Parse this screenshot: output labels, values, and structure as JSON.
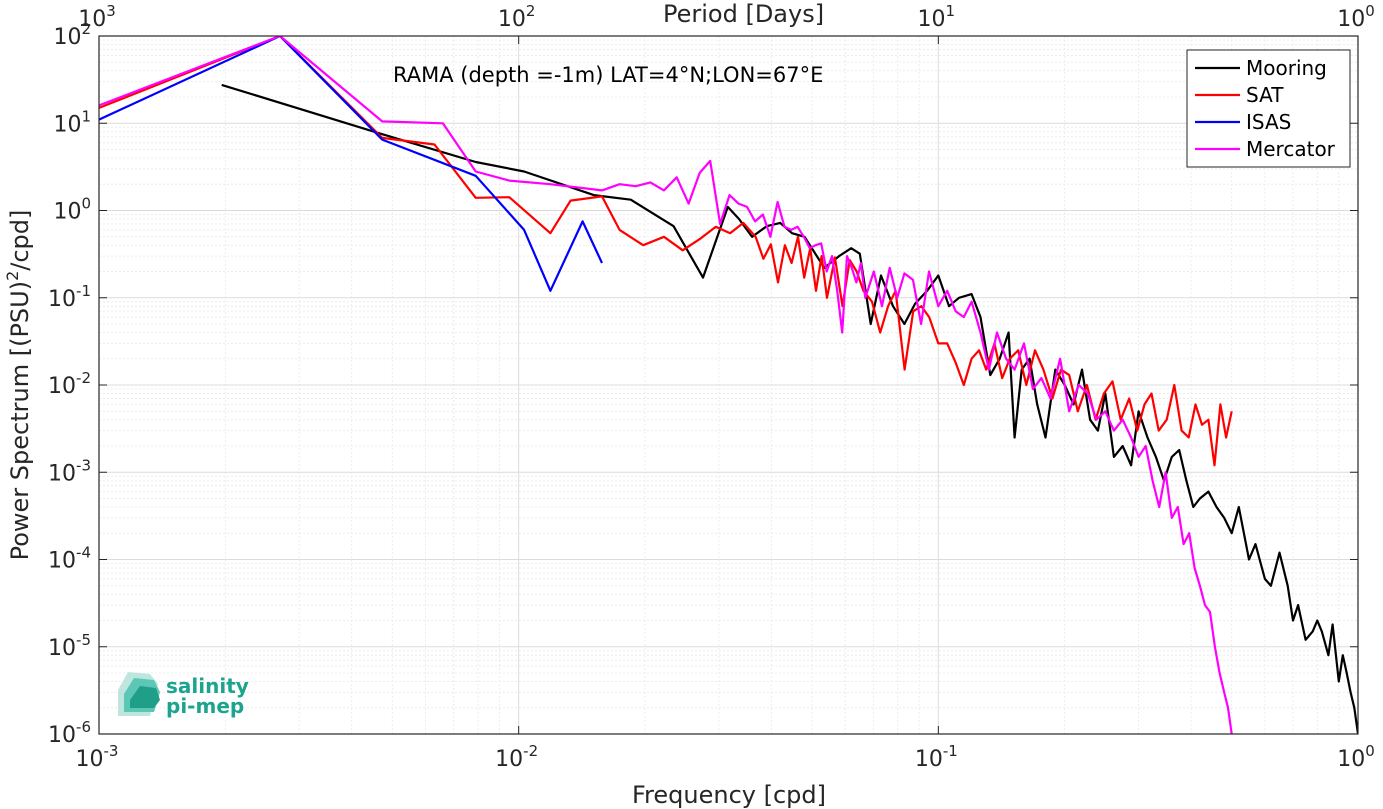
{
  "chart_data": {
    "type": "line",
    "title": "RAMA (depth =-1m) LAT=4°N;LON=67°E",
    "xlabel": "Frequency [cpd]",
    "ylabel": "Power Spectrum [(PSU)^2/cpd]",
    "top_xlabel": "Period [Days]",
    "xscale": "log",
    "yscale": "log",
    "xlim": [
      0.001,
      1
    ],
    "ylim": [
      1e-06,
      100
    ],
    "grid": true,
    "legend_position": "top-right",
    "x_ticks": [
      {
        "value": 0.001,
        "base": "10",
        "exp": "-3"
      },
      {
        "value": 0.01,
        "base": "10",
        "exp": "-2"
      },
      {
        "value": 0.1,
        "base": "10",
        "exp": "-1"
      },
      {
        "value": 1,
        "base": "10",
        "exp": "0"
      }
    ],
    "y_ticks": [
      {
        "value": 1e-06,
        "base": "10",
        "exp": "-6"
      },
      {
        "value": 1e-05,
        "base": "10",
        "exp": "-5"
      },
      {
        "value": 0.0001,
        "base": "10",
        "exp": "-4"
      },
      {
        "value": 0.001,
        "base": "10",
        "exp": "-3"
      },
      {
        "value": 0.01,
        "base": "10",
        "exp": "-2"
      },
      {
        "value": 0.1,
        "base": "10",
        "exp": "-1"
      },
      {
        "value": 1,
        "base": "10",
        "exp": "0"
      },
      {
        "value": 10,
        "base": "10",
        "exp": "1"
      },
      {
        "value": 100,
        "base": "10",
        "exp": "2"
      }
    ],
    "top_ticks": [
      {
        "value": 0.001,
        "base": "10",
        "exp": "3"
      },
      {
        "value": 0.01,
        "base": "10",
        "exp": "2"
      },
      {
        "value": 0.1,
        "base": "10",
        "exp": "1"
      },
      {
        "value": 1,
        "base": "10",
        "exp": "0"
      }
    ],
    "series": [
      {
        "name": "Mooring",
        "color": "#000000",
        "x": [
          0.00196,
          0.00473,
          0.0079,
          0.0103,
          0.0151,
          0.0185,
          0.0234,
          0.0275,
          0.0315,
          0.0335,
          0.036,
          0.039,
          0.042,
          0.0448,
          0.048,
          0.0535,
          0.058,
          0.062,
          0.065,
          0.069,
          0.073,
          0.078,
          0.083,
          0.088,
          0.094,
          0.1,
          0.106,
          0.112,
          0.12,
          0.126,
          0.133,
          0.14,
          0.147,
          0.152,
          0.158,
          0.165,
          0.172,
          0.18,
          0.19,
          0.2,
          0.21,
          0.22,
          0.23,
          0.24,
          0.25,
          0.262,
          0.275,
          0.288,
          0.3,
          0.315,
          0.33,
          0.345,
          0.36,
          0.375,
          0.39,
          0.405,
          0.42,
          0.44,
          0.46,
          0.48,
          0.5,
          0.52,
          0.55,
          0.57,
          0.6,
          0.62,
          0.65,
          0.68,
          0.7,
          0.72,
          0.75,
          0.78,
          0.8,
          0.82,
          0.85,
          0.87,
          0.9,
          0.92,
          0.94,
          0.96,
          0.98,
          1.0
        ],
        "y": [
          27.5,
          7.5,
          3.6,
          2.8,
          1.5,
          1.33,
          0.66,
          0.17,
          1.1,
          0.8,
          0.5,
          0.66,
          0.72,
          0.55,
          0.5,
          0.22,
          0.3,
          0.37,
          0.32,
          0.05,
          0.18,
          0.08,
          0.05,
          0.085,
          0.12,
          0.18,
          0.08,
          0.1,
          0.11,
          0.06,
          0.013,
          0.02,
          0.04,
          0.0025,
          0.015,
          0.02,
          0.006,
          0.0025,
          0.015,
          0.01,
          0.006,
          0.015,
          0.004,
          0.003,
          0.008,
          0.0015,
          0.002,
          0.0012,
          0.005,
          0.0025,
          0.0015,
          0.0008,
          0.0015,
          0.0018,
          0.0008,
          0.0004,
          0.0005,
          0.0006,
          0.0004,
          0.0003,
          0.0002,
          0.0004,
          0.0001,
          0.00015,
          6e-05,
          5e-05,
          0.00012,
          5e-05,
          2e-05,
          3e-05,
          1.2e-05,
          1.5e-05,
          2e-05,
          1.5e-05,
          8e-06,
          1.8e-05,
          4e-06,
          8e-06,
          5e-06,
          3e-06,
          2e-06,
          1e-06
        ]
      },
      {
        "name": "SAT",
        "color": "#ff0000",
        "x": [
          0.001,
          0.0027,
          0.00473,
          0.0063,
          0.0079,
          0.0095,
          0.0119,
          0.0133,
          0.0158,
          0.0174,
          0.0198,
          0.0222,
          0.0246,
          0.027,
          0.0295,
          0.0319,
          0.0343,
          0.0367,
          0.0383,
          0.0399,
          0.0415,
          0.0431,
          0.0447,
          0.0463,
          0.0479,
          0.0495,
          0.0511,
          0.0527,
          0.0543,
          0.0567,
          0.0591,
          0.0615,
          0.0639,
          0.0663,
          0.0695,
          0.0727,
          0.0759,
          0.0791,
          0.0831,
          0.0871,
          0.0911,
          0.0951,
          0.1,
          0.105,
          0.11,
          0.115,
          0.12,
          0.125,
          0.13,
          0.136,
          0.142,
          0.148,
          0.155,
          0.162,
          0.17,
          0.178,
          0.187,
          0.196,
          0.205,
          0.215,
          0.226,
          0.237,
          0.248,
          0.26,
          0.272,
          0.285,
          0.298,
          0.31,
          0.322,
          0.335,
          0.35,
          0.365,
          0.38,
          0.395,
          0.41,
          0.425,
          0.44,
          0.455,
          0.47,
          0.485,
          0.5
        ],
        "y": [
          15,
          100,
          6.8,
          5.7,
          1.4,
          1.42,
          0.55,
          1.3,
          1.45,
          0.6,
          0.4,
          0.5,
          0.35,
          0.47,
          0.65,
          0.55,
          0.72,
          0.5,
          0.28,
          0.41,
          0.15,
          0.4,
          0.25,
          0.5,
          0.17,
          0.37,
          0.12,
          0.3,
          0.1,
          0.29,
          0.08,
          0.27,
          0.2,
          0.12,
          0.09,
          0.04,
          0.08,
          0.12,
          0.015,
          0.07,
          0.08,
          0.06,
          0.03,
          0.03,
          0.018,
          0.01,
          0.02,
          0.025,
          0.015,
          0.03,
          0.012,
          0.02,
          0.025,
          0.01,
          0.025,
          0.015,
          0.007,
          0.015,
          0.013,
          0.005,
          0.01,
          0.004,
          0.008,
          0.011,
          0.004,
          0.007,
          0.003,
          0.006,
          0.008,
          0.003,
          0.004,
          0.01,
          0.003,
          0.0025,
          0.006,
          0.0035,
          0.004,
          0.0012,
          0.006,
          0.0025,
          0.005
        ]
      },
      {
        "name": "ISAS",
        "color": "#0000ff",
        "x": [
          0.001,
          0.0027,
          0.00473,
          0.0079,
          0.0103,
          0.0119,
          0.0142,
          0.0158
        ],
        "y": [
          11,
          100,
          6.5,
          2.5,
          0.6,
          0.12,
          0.75,
          0.25
        ]
      },
      {
        "name": "Mercator",
        "color": "#ff00ff",
        "x": [
          0.001,
          0.0027,
          0.00473,
          0.0066,
          0.0079,
          0.0095,
          0.0119,
          0.0158,
          0.0174,
          0.019,
          0.0206,
          0.0222,
          0.0238,
          0.0254,
          0.027,
          0.0286,
          0.0302,
          0.0318,
          0.0334,
          0.035,
          0.0366,
          0.0382,
          0.0398,
          0.0414,
          0.043,
          0.0446,
          0.0462,
          0.0478,
          0.0494,
          0.051,
          0.0526,
          0.0542,
          0.0558,
          0.0574,
          0.059,
          0.0606,
          0.0622,
          0.0638,
          0.0654,
          0.067,
          0.0702,
          0.0734,
          0.0766,
          0.0798,
          0.083,
          0.087,
          0.091,
          0.095,
          0.1,
          0.105,
          0.11,
          0.115,
          0.12,
          0.126,
          0.132,
          0.138,
          0.145,
          0.152,
          0.16,
          0.168,
          0.176,
          0.185,
          0.195,
          0.205,
          0.216,
          0.227,
          0.238,
          0.25,
          0.262,
          0.275,
          0.288,
          0.3,
          0.312,
          0.324,
          0.336,
          0.348,
          0.36,
          0.372,
          0.384,
          0.396,
          0.408,
          0.42,
          0.432,
          0.444,
          0.456,
          0.468,
          0.48,
          0.49,
          0.5
        ],
        "y": [
          16,
          100,
          10.5,
          10,
          2.8,
          2.2,
          2,
          1.7,
          2,
          1.9,
          2.1,
          1.7,
          2.4,
          1.2,
          2.7,
          3.7,
          0.7,
          1.5,
          1.2,
          1.1,
          0.75,
          0.9,
          0.5,
          1.25,
          0.65,
          0.6,
          0.65,
          0.5,
          0.37,
          0.4,
          0.42,
          0.2,
          0.3,
          0.12,
          0.04,
          0.3,
          0.22,
          0.15,
          0.25,
          0.1,
          0.2,
          0.08,
          0.22,
          0.1,
          0.19,
          0.16,
          0.05,
          0.2,
          0.08,
          0.12,
          0.07,
          0.06,
          0.09,
          0.04,
          0.015,
          0.04,
          0.02,
          0.015,
          0.03,
          0.009,
          0.012,
          0.007,
          0.02,
          0.005,
          0.01,
          0.008,
          0.004,
          0.005,
          0.003,
          0.004,
          0.0025,
          0.0015,
          0.002,
          0.0008,
          0.0004,
          0.001,
          0.0003,
          0.0004,
          0.00015,
          0.0002,
          8e-05,
          5e-05,
          3e-05,
          2.5e-05,
          1e-05,
          5e-06,
          3e-06,
          2e-06,
          1e-06
        ]
      }
    ]
  },
  "logo": {
    "line1": "salinity",
    "line2": "pi-mep"
  }
}
